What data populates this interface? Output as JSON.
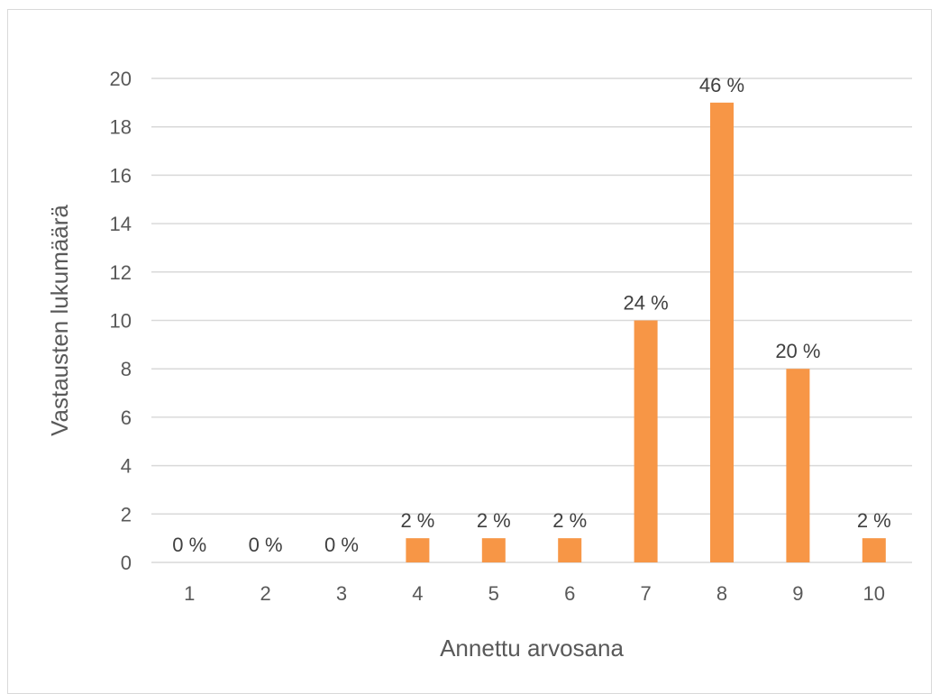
{
  "chart_data": {
    "type": "bar",
    "categories": [
      "1",
      "2",
      "3",
      "4",
      "5",
      "6",
      "7",
      "8",
      "9",
      "10"
    ],
    "values": [
      0,
      0,
      0,
      1,
      1,
      1,
      10,
      19,
      8,
      1
    ],
    "data_labels": [
      "0 %",
      "0 %",
      "0 %",
      "2 %",
      "2 %",
      "2 %",
      "24 %",
      "46 %",
      "20 %",
      "2 %"
    ],
    "y_ticks": [
      "0",
      "2",
      "4",
      "6",
      "8",
      "10",
      "12",
      "14",
      "16",
      "18",
      "20"
    ],
    "ylim": [
      0,
      20
    ],
    "xlabel": "Annettu arvosana",
    "ylabel": "Vastausten lukumäärä",
    "grid": true,
    "legend": "none",
    "bar_color": "#f79646",
    "gridline_color": "#d9d9d9"
  }
}
